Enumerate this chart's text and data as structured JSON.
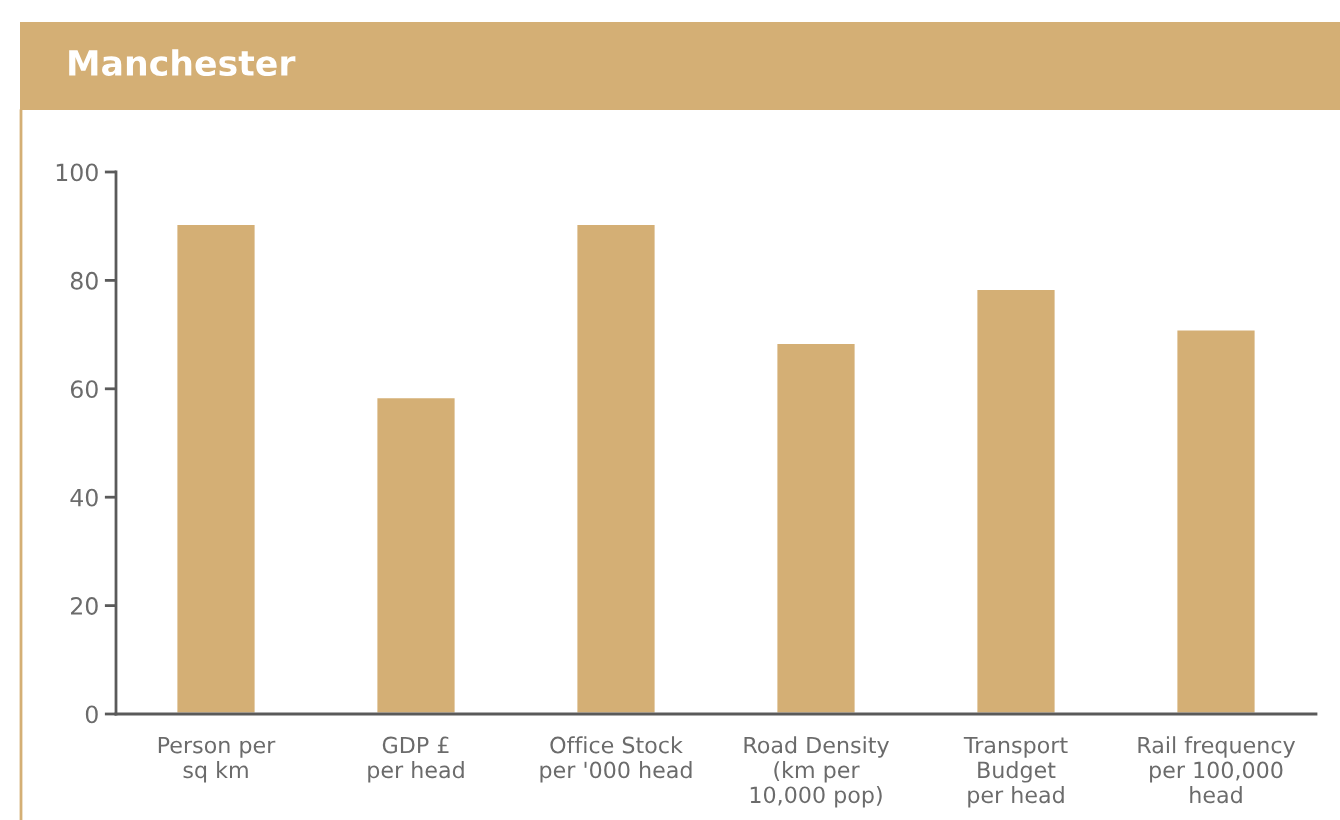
{
  "chart_data": {
    "type": "bar",
    "title": "Manchester",
    "categories": [
      "Person per\nsq km",
      "GDP £\nper head",
      "Office Stock\nper '000 head",
      "Road Density\n(km per\n10,000 pop)",
      "Transport\nBudget\nper head",
      "Rail frequency\nper 100,000\nhead"
    ],
    "series": [
      {
        "color": "#d4af75",
        "values": [
          90.5,
          58.5,
          90.5,
          68.5,
          78.5,
          71
        ]
      }
    ],
    "ylim": [
      0,
      100
    ],
    "yticks": [
      0,
      20,
      40,
      60,
      80,
      100
    ],
    "grid": false
  }
}
